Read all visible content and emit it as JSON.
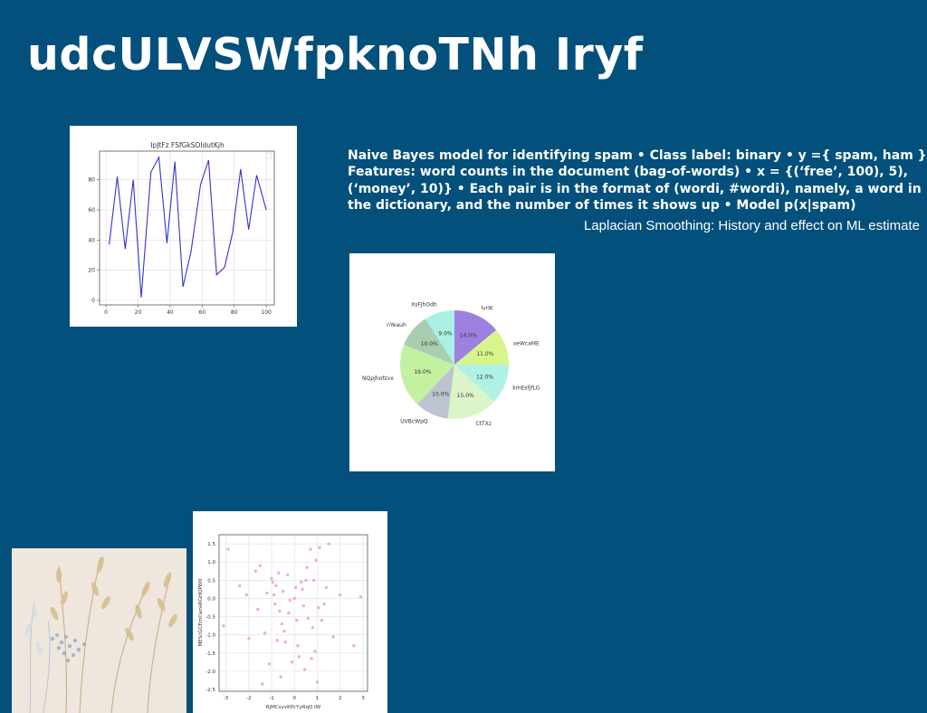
{
  "slide": {
    "title": "udcULVSWfpknoTNh Iryf",
    "body": "Naive Bayes model for identifying spam • Class label: binary • y ={ spam, ham } Features: word counts in the document (bag-of-words) • x = {(‘free’, 100), 5), (‘money’, 10)} • Each pair is in the format of (wordi, #wordi), namely, a word in the dictionary, and the number of times it shows up • Model p(x|spam)",
    "subtitle": "Laplacian Smoothing: History and effect on ML estimate",
    "background_color": "#02507b"
  },
  "chart_data": [
    {
      "type": "line",
      "title": "IpJtFz FSfGkSOldutKjh",
      "xlabel": "",
      "ylabel": "",
      "xlim": [
        -4,
        105
      ],
      "ylim": [
        -3,
        99
      ],
      "xticks": [
        0,
        20,
        40,
        60,
        80,
        100
      ],
      "yticks": [
        0,
        20,
        40,
        60,
        80
      ],
      "grid": true,
      "color": "#3333cc",
      "x": [
        2,
        7,
        12,
        17,
        22,
        28,
        33,
        38,
        43,
        48,
        53,
        59,
        64,
        69,
        74,
        79,
        84,
        89,
        94,
        100
      ],
      "y": [
        37,
        82,
        34,
        80,
        2,
        85,
        95,
        38,
        92,
        9,
        32,
        77,
        93,
        17,
        22,
        45,
        87,
        47,
        83,
        60
      ]
    },
    {
      "type": "pie",
      "labels": [
        "lvrlK",
        "xeWcaME",
        "kmEsfjfLG",
        "CtTXz",
        "UVBcWpQ",
        "NQpJhofzvx",
        "nYeauh",
        "XsFJhOdh"
      ],
      "values": [
        14.0,
        11.0,
        12.0,
        15.0,
        10.0,
        19.0,
        10.0,
        9.0
      ],
      "autopct": [
        "14.0%",
        "11.0%",
        "12.0%",
        "15.0%",
        "10.0%",
        "19.0%",
        "10.0%",
        "9.0%"
      ],
      "colors": [
        "#9f7fe0",
        "#d8f58c",
        "#aef2e6",
        "#dcf5c8",
        "#bcc4d0",
        "#c4f0a2",
        "#a9cdb0",
        "#aaf0e6"
      ]
    },
    {
      "type": "scatter",
      "xlabel": "RjMCsyvKPcYyRqO IW",
      "ylabel": "MEScGCEmCwnsRGHQPWII",
      "xlim": [
        -3.3,
        3.2
      ],
      "ylim": [
        -2.55,
        1.75
      ],
      "xticks": [
        -3,
        -2,
        -1,
        0,
        1,
        2,
        3
      ],
      "yticks": [
        1.5,
        1.0,
        0.5,
        0.0,
        -0.5,
        -1.0,
        -1.5,
        -2.0,
        -2.5
      ],
      "grid": true,
      "color": "#f0a0c0",
      "x": [
        -3.1,
        -2.9,
        -2.4,
        -2.1,
        -2.0,
        -1.7,
        -1.6,
        -1.5,
        -1.4,
        -1.2,
        -1.1,
        -1.0,
        -0.95,
        -0.9,
        -0.85,
        -0.8,
        -0.75,
        -0.7,
        -0.6,
        -0.55,
        -0.5,
        -0.45,
        -0.4,
        -0.3,
        -0.25,
        -0.2,
        -0.1,
        0.0,
        0.05,
        0.1,
        0.15,
        0.2,
        0.3,
        0.4,
        0.45,
        0.5,
        0.55,
        0.6,
        0.7,
        0.8,
        0.85,
        0.9,
        0.95,
        1.0,
        1.1,
        1.2,
        1.3,
        1.4,
        1.5,
        1.7,
        2.0,
        2.6,
        2.9,
        -0.65,
        0.35,
        0.75,
        -1.3,
        1.05
      ],
      "y": [
        -0.75,
        1.35,
        0.35,
        0.1,
        -1.1,
        0.75,
        -0.3,
        0.9,
        -2.35,
        0.15,
        -1.8,
        0.55,
        0.45,
        0.1,
        -0.15,
        0.35,
        -1.15,
        0.7,
        -2.15,
        -0.7,
        0.2,
        -0.9,
        -1.2,
        0.65,
        -0.4,
        -0.05,
        -1.75,
        0.0,
        0.3,
        -0.6,
        -1.3,
        -1.6,
        0.45,
        -0.2,
        -1.95,
        0.5,
        0.85,
        -0.55,
        1.35,
        -0.8,
        0.5,
        -1.45,
        1.05,
        -2.3,
        1.4,
        -0.6,
        -0.15,
        0.3,
        1.5,
        -1.05,
        0.1,
        -1.3,
        0.05,
        -0.35,
        0.25,
        -1.65,
        -0.95,
        -0.25
      ]
    }
  ],
  "images": {
    "photo": "dried-flowers-photo"
  }
}
